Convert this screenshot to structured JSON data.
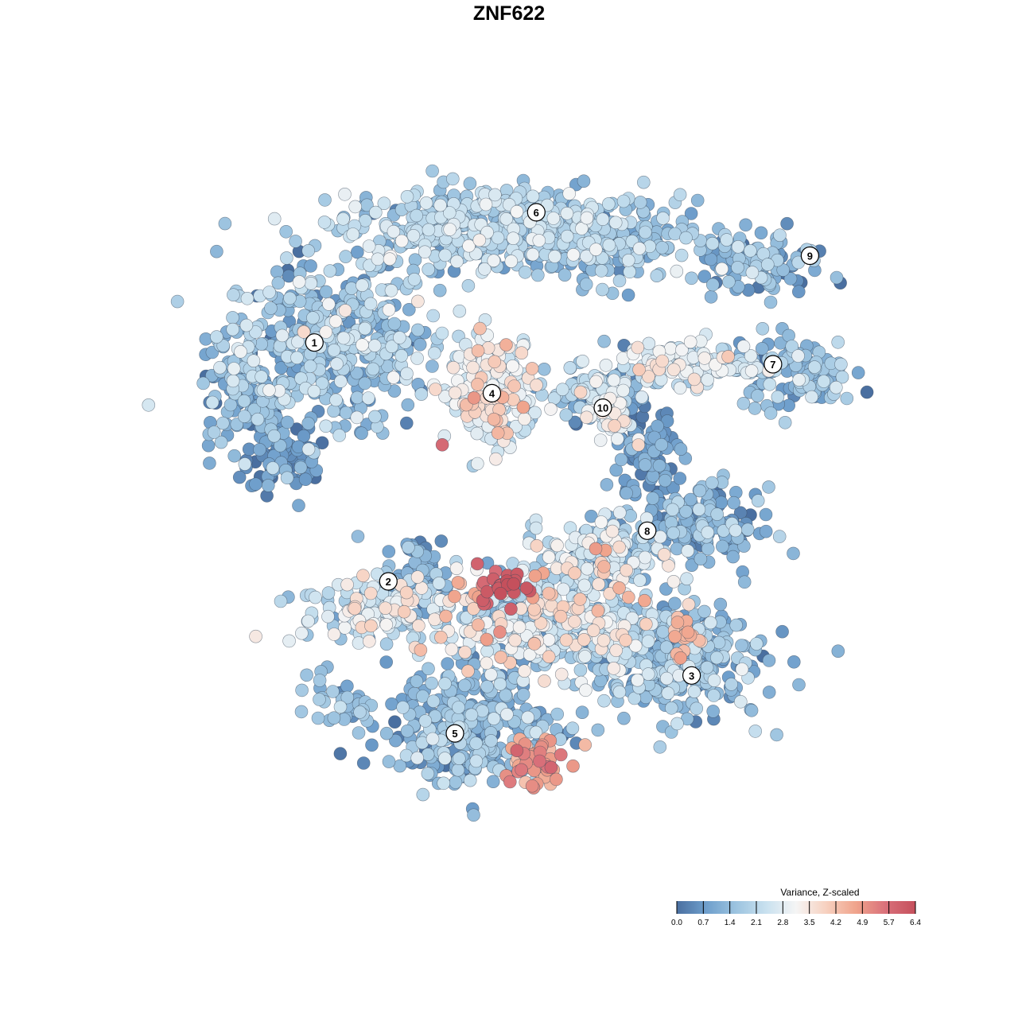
{
  "chart_data": {
    "type": "scatter",
    "title": "ZNF622",
    "xlabel": "",
    "ylabel": "",
    "grid": false,
    "legend": {
      "title": "Variance, Z-scaled",
      "position": "bottom-right",
      "ticks": [
        "0.0",
        "0.7",
        "1.4",
        "2.1",
        "2.8",
        "3.5",
        "4.2",
        "4.9",
        "5.7",
        "6.4"
      ],
      "range": [
        0,
        6.4
      ],
      "colors": [
        "#4a6fa0",
        "#6f9fcc",
        "#9dc4e0",
        "#c9e1ef",
        "#f5f5f5",
        "#f7d1c0",
        "#f0a48c",
        "#d9707a",
        "#c5505c"
      ]
    },
    "clusters": [
      {
        "label": "1",
        "x": 0.21,
        "y": 0.73
      },
      {
        "label": "2",
        "x": 0.31,
        "y": 0.4
      },
      {
        "label": "3",
        "x": 0.72,
        "y": 0.27
      },
      {
        "label": "4",
        "x": 0.45,
        "y": 0.66
      },
      {
        "label": "5",
        "x": 0.4,
        "y": 0.19
      },
      {
        "label": "6",
        "x": 0.51,
        "y": 0.91
      },
      {
        "label": "7",
        "x": 0.83,
        "y": 0.7
      },
      {
        "label": "8",
        "x": 0.66,
        "y": 0.47
      },
      {
        "label": "9",
        "x": 0.88,
        "y": 0.85
      },
      {
        "label": "10",
        "x": 0.6,
        "y": 0.64
      }
    ],
    "groups": [
      {
        "cx": 0.23,
        "cy": 0.73,
        "sx": 0.09,
        "sy": 0.07,
        "n": 420,
        "mean": 1.6,
        "sd": 0.7
      },
      {
        "cx": 0.42,
        "cy": 0.89,
        "sx": 0.11,
        "sy": 0.035,
        "n": 380,
        "mean": 1.9,
        "sd": 0.6
      },
      {
        "cx": 0.6,
        "cy": 0.87,
        "sx": 0.08,
        "sy": 0.035,
        "n": 240,
        "mean": 1.5,
        "sd": 0.6
      },
      {
        "cx": 0.12,
        "cy": 0.66,
        "sx": 0.04,
        "sy": 0.05,
        "n": 120,
        "mean": 1.2,
        "sd": 0.7
      },
      {
        "cx": 0.17,
        "cy": 0.57,
        "sx": 0.03,
        "sy": 0.03,
        "n": 80,
        "mean": 0.6,
        "sd": 0.5
      },
      {
        "cx": 0.45,
        "cy": 0.66,
        "sx": 0.04,
        "sy": 0.045,
        "n": 210,
        "mean": 2.9,
        "sd": 0.8
      },
      {
        "cx": 0.59,
        "cy": 0.66,
        "sx": 0.04,
        "sy": 0.025,
        "n": 90,
        "mean": 1.4,
        "sd": 1.1
      },
      {
        "cx": 0.61,
        "cy": 0.63,
        "sx": 0.02,
        "sy": 0.025,
        "n": 40,
        "mean": 3.0,
        "sd": 0.4
      },
      {
        "cx": 0.72,
        "cy": 0.7,
        "sx": 0.06,
        "sy": 0.02,
        "n": 110,
        "mean": 2.8,
        "sd": 0.6
      },
      {
        "cx": 0.86,
        "cy": 0.69,
        "sx": 0.05,
        "sy": 0.03,
        "n": 110,
        "mean": 1.4,
        "sd": 0.6
      },
      {
        "cx": 0.81,
        "cy": 0.84,
        "sx": 0.06,
        "sy": 0.025,
        "n": 110,
        "mean": 1.2,
        "sd": 0.6
      },
      {
        "cx": 0.66,
        "cy": 0.57,
        "sx": 0.025,
        "sy": 0.04,
        "n": 90,
        "mean": 0.6,
        "sd": 0.6
      },
      {
        "cx": 0.73,
        "cy": 0.48,
        "sx": 0.05,
        "sy": 0.03,
        "n": 170,
        "mean": 1.0,
        "sd": 0.6
      },
      {
        "cx": 0.6,
        "cy": 0.44,
        "sx": 0.05,
        "sy": 0.035,
        "n": 140,
        "mean": 2.2,
        "sd": 1.0
      },
      {
        "cx": 0.52,
        "cy": 0.35,
        "sx": 0.1,
        "sy": 0.05,
        "n": 420,
        "mean": 2.4,
        "sd": 1.1
      },
      {
        "cx": 0.46,
        "cy": 0.39,
        "sx": 0.025,
        "sy": 0.015,
        "n": 30,
        "mean": 6.0,
        "sd": 0.3
      },
      {
        "cx": 0.29,
        "cy": 0.36,
        "sx": 0.06,
        "sy": 0.03,
        "n": 150,
        "mean": 2.5,
        "sd": 0.7
      },
      {
        "cx": 0.35,
        "cy": 0.42,
        "sx": 0.03,
        "sy": 0.025,
        "n": 60,
        "mean": 0.9,
        "sd": 0.6
      },
      {
        "cx": 0.69,
        "cy": 0.29,
        "sx": 0.08,
        "sy": 0.05,
        "n": 320,
        "mean": 1.4,
        "sd": 0.6
      },
      {
        "cx": 0.71,
        "cy": 0.33,
        "sx": 0.012,
        "sy": 0.02,
        "n": 20,
        "mean": 4.4,
        "sd": 0.3
      },
      {
        "cx": 0.42,
        "cy": 0.2,
        "sx": 0.07,
        "sy": 0.05,
        "n": 300,
        "mean": 1.3,
        "sd": 0.6
      },
      {
        "cx": 0.51,
        "cy": 0.15,
        "sx": 0.025,
        "sy": 0.025,
        "n": 55,
        "mean": 4.8,
        "sd": 0.4
      },
      {
        "cx": 0.24,
        "cy": 0.23,
        "sx": 0.04,
        "sy": 0.025,
        "n": 40,
        "mean": 1.3,
        "sd": 0.5
      }
    ]
  }
}
